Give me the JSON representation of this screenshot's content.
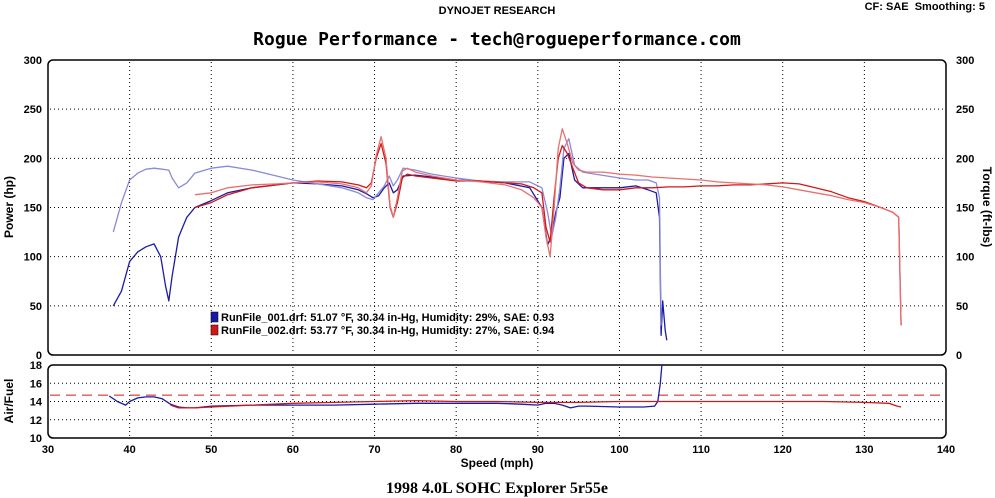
{
  "header": {
    "vendor": "DYNOJET RESEARCH",
    "settings": "CF: SAE  Smoothing: 5",
    "title": "Rogue Performance - tech@rogueperformance.com",
    "caption": "1998 4.0L SOHC Explorer 5r55e"
  },
  "colors": {
    "run1": "#1a1aa8",
    "run2": "#d01818",
    "run1_light": "#8a8ad8",
    "run2_light": "#e87070",
    "frame": "#000000",
    "background": "#ffffff"
  },
  "chart_data": [
    {
      "type": "line",
      "title": "Rogue Performance - tech@rogueperformance.com",
      "xlabel": "Speed (mph)",
      "ylabel": "Power (hp)",
      "y2label": "Torque (ft-lbs)",
      "xlim": [
        30,
        140
      ],
      "ylim": [
        0,
        300
      ],
      "y2lim": [
        0,
        300
      ],
      "x_ticks": [
        30,
        40,
        50,
        60,
        70,
        80,
        90,
        100,
        110,
        120,
        130,
        140
      ],
      "y_ticks": [
        0,
        50,
        100,
        150,
        200,
        250,
        300
      ],
      "grid": true,
      "legend": [
        "RunFile_001.drf: 51.07 °F, 30.34 in-Hg, Humidity: 29%, SAE: 0.93",
        "RunFile_002.drf: 53.77 °F, 30.34 in-Hg, Humidity: 27%, SAE: 0.94"
      ],
      "series": [
        {
          "name": "RunFile_001.drf",
          "measure": "power",
          "color": "#1a1aa8",
          "x": [
            38,
            39,
            40,
            41,
            42,
            43,
            43.8,
            44.4,
            44.8,
            45.2,
            46,
            47,
            48,
            50,
            52,
            55,
            58,
            60,
            63,
            66,
            68,
            69,
            69.8,
            70.5,
            71.2,
            71.8,
            72.3,
            72.8,
            73.5,
            75,
            77,
            80,
            83,
            86,
            89,
            90.5,
            91.2,
            91.7,
            92.2,
            92.7,
            93.2,
            93.8,
            94.5,
            95.5,
            97,
            100,
            102,
            103.5,
            104.5,
            104.9,
            105.1,
            105.3,
            105.6,
            105.8
          ],
          "y": [
            50,
            65,
            95,
            105,
            110,
            113,
            100,
            70,
            55,
            80,
            120,
            140,
            150,
            157,
            165,
            170,
            173,
            175,
            174,
            172,
            168,
            164,
            160,
            162,
            170,
            175,
            165,
            168,
            182,
            183,
            181,
            178,
            177,
            175,
            170,
            150,
            112,
            122,
            145,
            160,
            200,
            205,
            178,
            170,
            170,
            170,
            172,
            168,
            165,
            140,
            20,
            55,
            25,
            15
          ]
        },
        {
          "name": "RunFile_001.drf",
          "measure": "torque",
          "color": "#8a8ad8",
          "x": [
            38,
            39,
            40,
            41,
            42,
            43,
            44,
            44.8,
            45.2,
            46,
            47,
            48,
            50,
            52,
            55,
            58,
            60,
            63,
            66,
            68,
            69,
            69.8,
            70.5,
            71.2,
            71.8,
            72.3,
            72.8,
            73.5,
            75,
            77,
            80,
            83,
            86,
            89,
            90.5,
            91.2,
            91.7,
            92.2,
            92.7,
            93.2,
            93.8,
            94.5,
            95.5,
            97,
            100,
            102,
            103.5,
            104.5,
            104.9,
            105.1
          ],
          "y": [
            125,
            155,
            178,
            185,
            189,
            190,
            189,
            188,
            180,
            170,
            175,
            185,
            190,
            192,
            188,
            182,
            178,
            174,
            170,
            165,
            160,
            158,
            165,
            172,
            182,
            172,
            178,
            190,
            188,
            184,
            180,
            177,
            176,
            176,
            170,
            145,
            120,
            140,
            170,
            210,
            220,
            193,
            186,
            184,
            180,
            178,
            178,
            175,
            160,
            30
          ]
        },
        {
          "name": "RunFile_002.drf",
          "measure": "power",
          "color": "#d01818",
          "x": [
            48,
            50,
            52,
            55,
            58,
            60,
            63,
            66,
            68,
            69,
            69.6,
            70.2,
            70.8,
            71.4,
            71.9,
            72.3,
            72.8,
            73.4,
            74,
            75,
            77,
            80,
            83,
            86,
            88,
            89.5,
            90.5,
            91,
            91.5,
            92,
            92.5,
            93,
            93.6,
            94.3,
            95,
            96,
            98,
            100,
            102,
            104,
            106,
            108,
            110,
            112,
            114,
            116,
            118,
            120,
            122,
            124,
            126,
            128,
            130,
            132,
            133.5,
            134.2,
            134.5
          ],
          "y": [
            150,
            155,
            163,
            170,
            173,
            175,
            177,
            176,
            173,
            170,
            175,
            200,
            215,
            195,
            150,
            140,
            155,
            180,
            184,
            182,
            180,
            177,
            177,
            175,
            174,
            170,
            165,
            130,
            115,
            160,
            200,
            213,
            205,
            190,
            175,
            170,
            168,
            168,
            170,
            170,
            171,
            171,
            172,
            172,
            173,
            173,
            174,
            175,
            174,
            170,
            166,
            160,
            156,
            150,
            145,
            140,
            30
          ]
        },
        {
          "name": "RunFile_002.drf",
          "measure": "torque",
          "color": "#e87070",
          "x": [
            48,
            50,
            52,
            55,
            58,
            60,
            63,
            66,
            68,
            69,
            69.6,
            70.2,
            70.8,
            71.4,
            71.9,
            72.3,
            72.8,
            73.4,
            74,
            75,
            77,
            80,
            83,
            86,
            88,
            89.5,
            90.5,
            91,
            91.5,
            92,
            92.5,
            93,
            93.6,
            94.3,
            95,
            96,
            98,
            100,
            102,
            104,
            106,
            108,
            110,
            112,
            114,
            116,
            118,
            120,
            122,
            124,
            126,
            128,
            130,
            132,
            133.5,
            134.2,
            134.5
          ],
          "y": [
            163,
            165,
            170,
            173,
            174,
            175,
            176,
            174,
            170,
            165,
            172,
            203,
            222,
            200,
            152,
            140,
            160,
            187,
            190,
            186,
            182,
            178,
            176,
            173,
            168,
            160,
            150,
            120,
            100,
            150,
            210,
            230,
            215,
            195,
            188,
            186,
            186,
            184,
            183,
            181,
            180,
            179,
            178,
            176,
            175,
            174,
            173,
            171,
            168,
            165,
            162,
            158,
            155,
            150,
            145,
            140,
            30
          ]
        }
      ]
    },
    {
      "type": "line",
      "xlabel": "Speed (mph)",
      "ylabel": "Air/Fuel",
      "xlim": [
        30,
        140
      ],
      "ylim": [
        10,
        18
      ],
      "x_ticks": [
        30,
        40,
        50,
        60,
        70,
        80,
        90,
        100,
        110,
        120,
        130,
        140
      ],
      "y_ticks": [
        10,
        12,
        14,
        16,
        18
      ],
      "reference_line": 14.7,
      "grid": true,
      "series": [
        {
          "name": "RunFile_001.drf",
          "color": "#1a1aa8",
          "x": [
            37.5,
            38.5,
            39.5,
            40,
            41,
            42,
            43,
            44,
            45,
            46,
            47,
            48,
            50,
            55,
            60,
            65,
            70,
            75,
            80,
            85,
            88,
            90,
            91,
            92,
            93,
            94,
            95,
            96,
            100,
            103,
            104.3,
            104.7,
            105,
            105.2
          ],
          "y": [
            14.6,
            14.0,
            13.6,
            14.0,
            14.4,
            14.5,
            14.5,
            14.3,
            13.7,
            13.4,
            13.3,
            13.3,
            13.5,
            13.6,
            13.6,
            13.6,
            13.7,
            13.8,
            13.8,
            13.8,
            13.7,
            13.6,
            13.8,
            13.8,
            13.6,
            13.3,
            13.5,
            13.5,
            13.4,
            13.4,
            13.5,
            14.0,
            16.0,
            18.0
          ]
        },
        {
          "name": "RunFile_002.drf",
          "color": "#d01818",
          "x": [
            45,
            46,
            48,
            50,
            55,
            60,
            65,
            70,
            75,
            80,
            85,
            90,
            95,
            100,
            105,
            110,
            115,
            120,
            125,
            130,
            133,
            134,
            134.5
          ],
          "y": [
            13.6,
            13.3,
            13.3,
            13.4,
            13.6,
            13.8,
            13.9,
            14.0,
            14.1,
            14.0,
            14.0,
            13.9,
            13.9,
            14.0,
            14.0,
            14.0,
            14.0,
            14.0,
            14.0,
            13.9,
            13.8,
            13.5,
            13.4
          ]
        }
      ]
    }
  ]
}
